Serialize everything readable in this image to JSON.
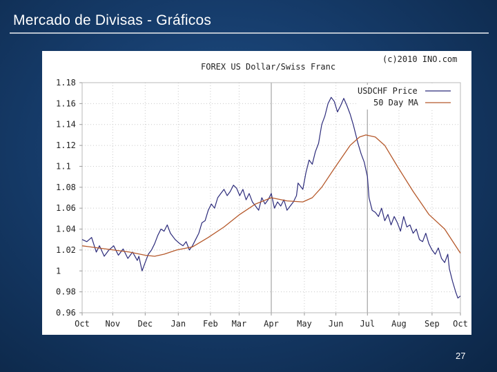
{
  "slide": {
    "title": "Mercado de Divisas - Gráficos",
    "page_number": "27"
  },
  "colors": {
    "background": "#163c6b",
    "price_line": "#2b2a7a",
    "ma_line": "#b5582a",
    "grid": "#c8c8c8"
  },
  "chart_data": {
    "type": "line",
    "title": "FOREX US Dollar/Swiss Franc",
    "credit": "(c)2010 INO.com",
    "xlabel": "",
    "ylabel": "",
    "ylim": [
      0.96,
      1.18
    ],
    "y_ticks": [
      1.18,
      1.16,
      1.14,
      1.12,
      1.1,
      1.08,
      1.06,
      1.04,
      1.02,
      1,
      0.98,
      0.96
    ],
    "y_tick_labels": [
      "1.18",
      "1.16",
      "1.14",
      "1.12",
      "1.1",
      "1.08",
      "1.06",
      "1.04",
      "1.02",
      "1",
      "0.98",
      "0.96"
    ],
    "x_range": [
      0,
      12
    ],
    "x_ticks": [
      0,
      0.97,
      2.0,
      3.05,
      4.07,
      4.98,
      6.0,
      7.05,
      8.05,
      9.05,
      10.05,
      11.1,
      12.0
    ],
    "x_tick_labels": [
      "Oct",
      "Nov",
      "Dec",
      "Jan",
      "Feb",
      "Mar",
      "Apr",
      "May",
      "Jun",
      "Jul",
      "Aug",
      "Sep",
      "Oct"
    ],
    "legend": {
      "position": "top-right",
      "entries": [
        "USDCHF Price",
        "50 Day MA"
      ]
    },
    "series": [
      {
        "name": "USDCHF Price",
        "color": "#2b2a7a",
        "points": [
          [
            0,
            1.03
          ],
          [
            0.15,
            1.028
          ],
          [
            0.3,
            1.032
          ],
          [
            0.45,
            1.018
          ],
          [
            0.55,
            1.024
          ],
          [
            0.7,
            1.014
          ],
          [
            0.85,
            1.02
          ],
          [
            1.0,
            1.024
          ],
          [
            1.15,
            1.015
          ],
          [
            1.3,
            1.021
          ],
          [
            1.45,
            1.012
          ],
          [
            1.6,
            1.018
          ],
          [
            1.75,
            1.01
          ],
          [
            1.8,
            1.014
          ],
          [
            1.9,
            1.0
          ],
          [
            2.0,
            1.008
          ],
          [
            2.1,
            1.016
          ],
          [
            2.2,
            1.02
          ],
          [
            2.3,
            1.026
          ],
          [
            2.4,
            1.034
          ],
          [
            2.5,
            1.04
          ],
          [
            2.6,
            1.038
          ],
          [
            2.7,
            1.044
          ],
          [
            2.8,
            1.036
          ],
          [
            2.95,
            1.03
          ],
          [
            3.1,
            1.026
          ],
          [
            3.2,
            1.024
          ],
          [
            3.3,
            1.028
          ],
          [
            3.4,
            1.02
          ],
          [
            3.5,
            1.024
          ],
          [
            3.6,
            1.03
          ],
          [
            3.7,
            1.036
          ],
          [
            3.8,
            1.046
          ],
          [
            3.9,
            1.048
          ],
          [
            4.0,
            1.058
          ],
          [
            4.1,
            1.064
          ],
          [
            4.2,
            1.06
          ],
          [
            4.3,
            1.07
          ],
          [
            4.4,
            1.074
          ],
          [
            4.5,
            1.078
          ],
          [
            4.6,
            1.072
          ],
          [
            4.7,
            1.076
          ],
          [
            4.8,
            1.082
          ],
          [
            4.9,
            1.079
          ],
          [
            5.0,
            1.072
          ],
          [
            5.1,
            1.078
          ],
          [
            5.2,
            1.068
          ],
          [
            5.3,
            1.074
          ],
          [
            5.4,
            1.066
          ],
          [
            5.5,
            1.062
          ],
          [
            5.6,
            1.058
          ],
          [
            5.7,
            1.07
          ],
          [
            5.8,
            1.064
          ],
          [
            5.9,
            1.068
          ],
          [
            6.0,
            1.074
          ],
          [
            6.1,
            1.06
          ],
          [
            6.2,
            1.066
          ],
          [
            6.3,
            1.062
          ],
          [
            6.4,
            1.068
          ],
          [
            6.5,
            1.058
          ],
          [
            6.6,
            1.062
          ],
          [
            6.7,
            1.066
          ],
          [
            6.8,
            1.072
          ],
          [
            6.85,
            1.084
          ],
          [
            7.0,
            1.078
          ],
          [
            7.1,
            1.094
          ],
          [
            7.2,
            1.106
          ],
          [
            7.3,
            1.102
          ],
          [
            7.4,
            1.114
          ],
          [
            7.5,
            1.122
          ],
          [
            7.6,
            1.14
          ],
          [
            7.7,
            1.148
          ],
          [
            7.8,
            1.16
          ],
          [
            7.9,
            1.166
          ],
          [
            8.0,
            1.162
          ],
          [
            8.1,
            1.152
          ],
          [
            8.2,
            1.158
          ],
          [
            8.3,
            1.165
          ],
          [
            8.4,
            1.158
          ],
          [
            8.5,
            1.15
          ],
          [
            8.6,
            1.14
          ],
          [
            8.7,
            1.128
          ],
          [
            8.75,
            1.122
          ],
          [
            8.85,
            1.112
          ],
          [
            8.95,
            1.104
          ],
          [
            9.05,
            1.09
          ],
          [
            9.1,
            1.07
          ],
          [
            9.2,
            1.058
          ],
          [
            9.3,
            1.056
          ],
          [
            9.4,
            1.052
          ],
          [
            9.5,
            1.06
          ],
          [
            9.6,
            1.048
          ],
          [
            9.7,
            1.054
          ],
          [
            9.8,
            1.044
          ],
          [
            9.9,
            1.052
          ],
          [
            10.0,
            1.046
          ],
          [
            10.1,
            1.038
          ],
          [
            10.2,
            1.052
          ],
          [
            10.3,
            1.042
          ],
          [
            10.4,
            1.044
          ],
          [
            10.5,
            1.036
          ],
          [
            10.6,
            1.04
          ],
          [
            10.7,
            1.03
          ],
          [
            10.8,
            1.028
          ],
          [
            10.9,
            1.036
          ],
          [
            11.0,
            1.026
          ],
          [
            11.1,
            1.02
          ],
          [
            11.2,
            1.016
          ],
          [
            11.3,
            1.022
          ],
          [
            11.4,
            1.012
          ],
          [
            11.5,
            1.008
          ],
          [
            11.6,
            1.016
          ],
          [
            11.65,
            1.002
          ],
          [
            11.75,
            0.99
          ],
          [
            11.85,
            0.98
          ],
          [
            11.92,
            0.974
          ],
          [
            12.0,
            0.976
          ]
        ]
      },
      {
        "name": "50 Day MA",
        "color": "#b5582a",
        "points": [
          [
            0,
            1.024
          ],
          [
            0.5,
            1.022
          ],
          [
            1.0,
            1.02
          ],
          [
            1.5,
            1.018
          ],
          [
            2.0,
            1.015
          ],
          [
            2.3,
            1.014
          ],
          [
            2.6,
            1.016
          ],
          [
            3.0,
            1.02
          ],
          [
            3.5,
            1.023
          ],
          [
            4.0,
            1.032
          ],
          [
            4.5,
            1.042
          ],
          [
            5.0,
            1.054
          ],
          [
            5.5,
            1.064
          ],
          [
            6.0,
            1.07
          ],
          [
            6.5,
            1.067
          ],
          [
            7.0,
            1.066
          ],
          [
            7.3,
            1.07
          ],
          [
            7.6,
            1.08
          ],
          [
            8.0,
            1.098
          ],
          [
            8.5,
            1.12
          ],
          [
            8.8,
            1.128
          ],
          [
            9.0,
            1.13
          ],
          [
            9.3,
            1.128
          ],
          [
            9.6,
            1.12
          ],
          [
            10.0,
            1.1
          ],
          [
            10.5,
            1.076
          ],
          [
            11.0,
            1.054
          ],
          [
            11.5,
            1.04
          ],
          [
            12.0,
            1.017
          ]
        ]
      }
    ]
  }
}
